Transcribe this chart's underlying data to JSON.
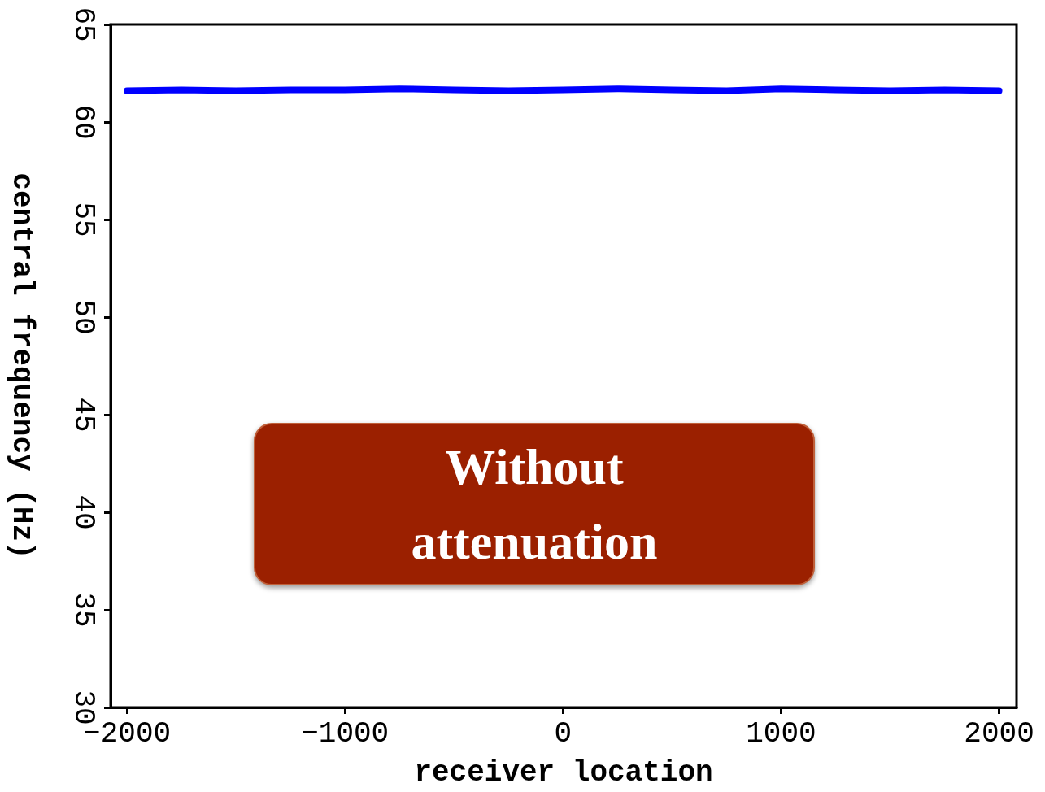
{
  "chart_data": {
    "type": "line",
    "xlabel": "receiver location",
    "ylabel": "central frequency (Hz)",
    "x": [
      -2000,
      -1750,
      -1500,
      -1250,
      -1000,
      -750,
      -500,
      -250,
      0,
      250,
      500,
      750,
      1000,
      1250,
      1500,
      1750,
      2000
    ],
    "series": [
      {
        "color": "#0000ff",
        "values": [
          61.6,
          61.65,
          61.6,
          61.65,
          61.65,
          61.7,
          61.65,
          61.6,
          61.65,
          61.7,
          61.65,
          61.6,
          61.7,
          61.65,
          61.6,
          61.65,
          61.6
        ]
      }
    ],
    "xlim": [
      -2075,
      2080
    ],
    "xticks": [
      -2000,
      -1000,
      0,
      1000,
      2000
    ],
    "ylim": [
      30,
      65
    ],
    "yticks": [
      30,
      35,
      40,
      45,
      50,
      55,
      60,
      65
    ],
    "grid": false,
    "line_style": "solid",
    "annotations": [
      "Without\nattenuation"
    ]
  }
}
